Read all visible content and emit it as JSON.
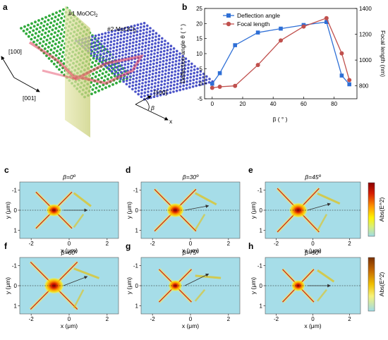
{
  "panels": {
    "a": "a",
    "b": "b",
    "c": "c",
    "d": "d",
    "e": "e",
    "f": "f",
    "g": "g",
    "h": "h"
  },
  "schematic": {
    "layer1": "#1 MoOCl",
    "layer1_sub": "2",
    "layer2": "#2 MoOCl",
    "layer2_sub": "2",
    "dir_100_left": "[100]",
    "dir_001": "[001]",
    "dir_100_right": "[100]",
    "beta": "β",
    "x": "x",
    "colors": {
      "layer1": "#2faa3a",
      "layer2": "#4a52c8",
      "beam": "#e23c5a",
      "plane": "#d8dc9a"
    }
  },
  "chart_data": {
    "type": "line",
    "x": [
      0,
      5,
      15,
      30,
      45,
      60,
      75,
      85,
      90
    ],
    "xlabel": "β ( ° )",
    "ylabel_left": "Deflection angle θ ( ° )",
    "ylabel_right": "Focal length (nm)",
    "xlim": [
      -5,
      95
    ],
    "ylim_left": [
      -5,
      25
    ],
    "ylim_right": [
      700,
      1400
    ],
    "xticks": [
      "0",
      "20",
      "40",
      "60",
      "80"
    ],
    "yticks_left": [
      "-5",
      "0",
      "5",
      "10",
      "15",
      "20",
      "25"
    ],
    "yticks_right": [
      "800",
      "1000",
      "1200",
      "1400"
    ],
    "legend_position": "top-left",
    "series": [
      {
        "name": "Deflection angle",
        "axis": "left",
        "color": "#2e6fd6",
        "marker": "square",
        "values": [
          0,
          3.5,
          12.8,
          17,
          18.3,
          19.5,
          20.5,
          2.7,
          -0.2
        ]
      },
      {
        "name": "Focal length",
        "axis": "right",
        "color": "#c0504d",
        "marker": "circle",
        "values": [
          785,
          793,
          800,
          962,
          1152,
          1260,
          1325,
          1052,
          845
        ]
      }
    ]
  },
  "maps": {
    "xlabel": "x (μm)",
    "ylabel": "y (μm)",
    "xticks": [
      "-2",
      "0",
      "2"
    ],
    "yticks": [
      "-1",
      "0",
      "1"
    ],
    "colorbar_label": "Abs(E^2)",
    "titles": {
      "c": "β=0º",
      "d": "β=30º",
      "e": "β=45º",
      "f": "β=60º",
      "g": "β=75º",
      "h": "β=90º"
    }
  }
}
